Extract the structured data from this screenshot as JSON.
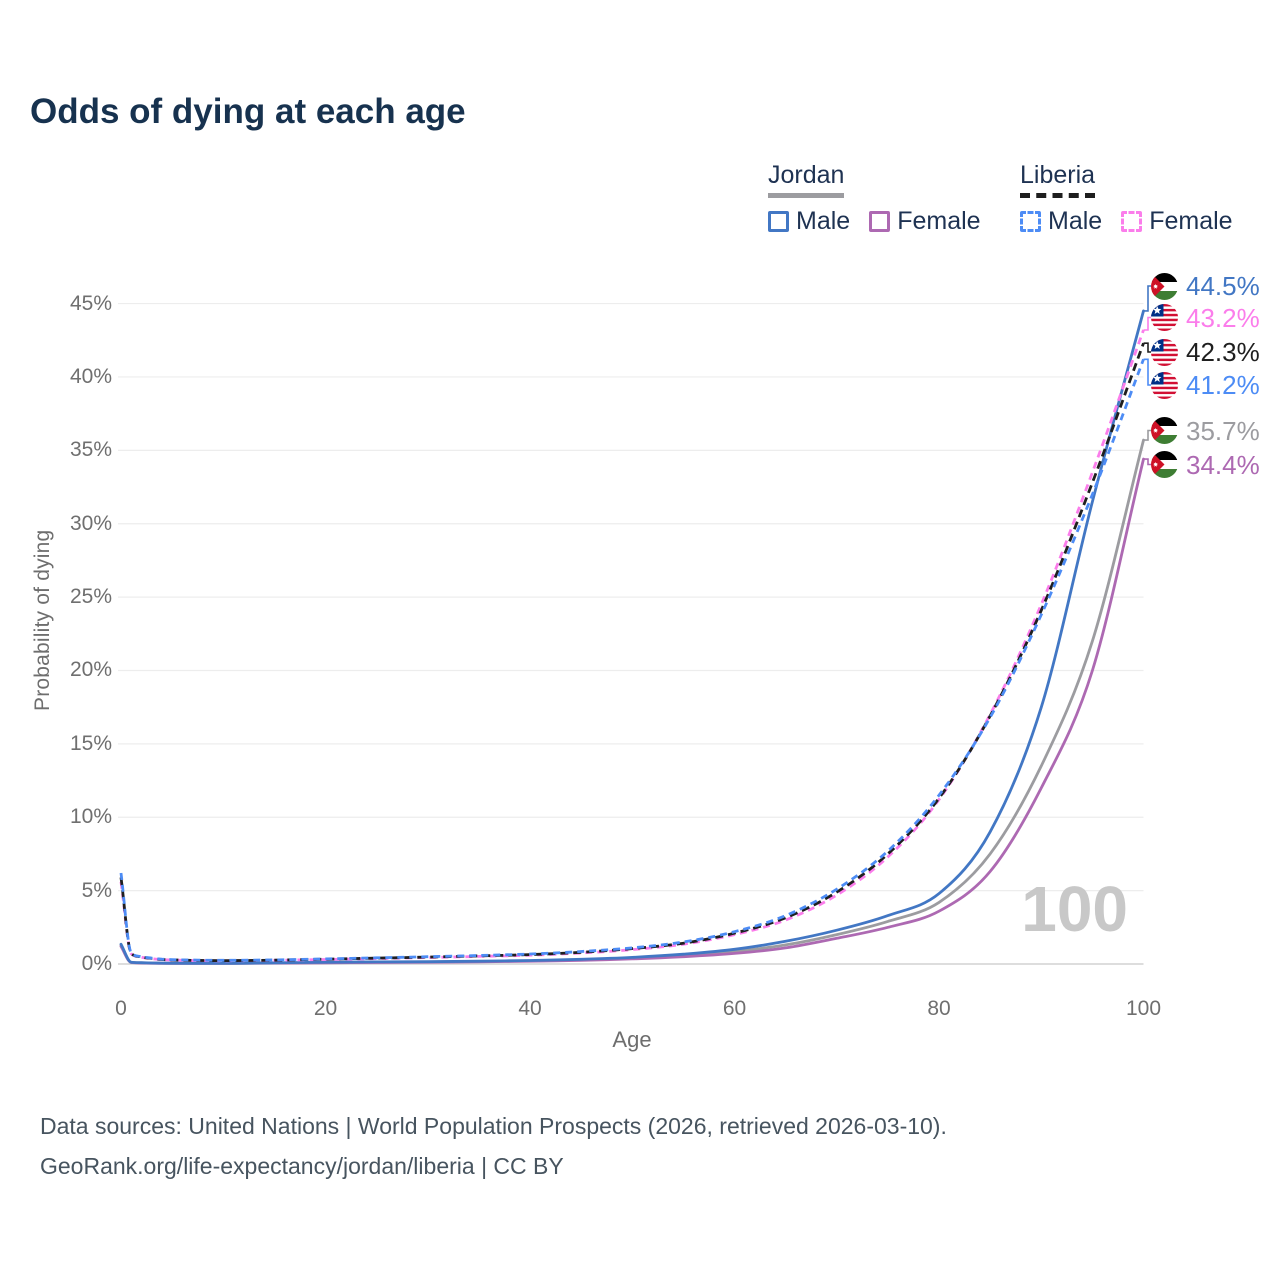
{
  "title": "Odds of dying at each age",
  "legend": {
    "groups": [
      {
        "country": "Jordan",
        "line_style": "solid",
        "underline_color": "#9c9ca0",
        "items": [
          {
            "label": "Male",
            "color": "#4277c4"
          },
          {
            "label": "Female",
            "color": "#ad69b2"
          }
        ]
      },
      {
        "country": "Liberia",
        "line_style": "dashed",
        "underline_color": "#1e1e1e",
        "items": [
          {
            "label": "Male",
            "color": "#4d8cf5"
          },
          {
            "label": "Female",
            "color": "#fb7deb"
          }
        ]
      }
    ]
  },
  "axes": {
    "x_label": "Age",
    "y_label": "Probability of dying",
    "x_ticks": [
      0,
      20,
      40,
      60,
      80,
      100
    ],
    "y_ticks": [
      0,
      5,
      10,
      15,
      20,
      25,
      30,
      35,
      40,
      45
    ],
    "y_tick_suffix": "%"
  },
  "watermark": "100",
  "footer": {
    "line1": "Data sources: United Nations | World Population Prospects (2026, retrieved 2026-03-10).",
    "line2": "GeoRank.org/life-expectancy/jordan/liberia | CC BY"
  },
  "colors": {
    "title": "#17324f",
    "grid": "#ededed",
    "zero_line": "#d2d2d2",
    "tick_text": "#6f6f6f",
    "watermark": "#c8c8c8"
  },
  "chart_data": {
    "type": "line",
    "title": "Odds of dying at each age",
    "xlabel": "Age",
    "ylabel": "Probability of dying",
    "xlim": [
      0,
      100
    ],
    "ylim": [
      0,
      46
    ],
    "grid": "horizontal",
    "legend_position": "top-right",
    "x": [
      0,
      1,
      2,
      3,
      4,
      5,
      10,
      15,
      20,
      25,
      30,
      35,
      40,
      45,
      50,
      55,
      60,
      65,
      70,
      75,
      80,
      85,
      90,
      95,
      100
    ],
    "series": [
      {
        "id": "jordan_male",
        "name": "Jordan Male",
        "country": "Jordan",
        "sex": "Male",
        "style": "solid",
        "color": "#4277c4",
        "end_label": "44.5%",
        "values": [
          1.35,
          0.12,
          0.09,
          0.07,
          0.06,
          0.055,
          0.05,
          0.08,
          0.12,
          0.14,
          0.16,
          0.19,
          0.24,
          0.32,
          0.45,
          0.67,
          1.0,
          1.55,
          2.3,
          3.3,
          4.8,
          9.0,
          17.5,
          31.5,
          44.5
        ]
      },
      {
        "id": "jordan_both",
        "name": "Jordan Both sexes",
        "country": "Jordan",
        "sex": "Both",
        "style": "solid",
        "color": "#9c9ca0",
        "end_label": "35.7%",
        "values": [
          1.28,
          0.11,
          0.08,
          0.065,
          0.055,
          0.05,
          0.045,
          0.07,
          0.1,
          0.12,
          0.14,
          0.17,
          0.21,
          0.28,
          0.4,
          0.57,
          0.85,
          1.3,
          2.0,
          2.9,
          4.2,
          7.5,
          13.5,
          22.0,
          35.7
        ]
      },
      {
        "id": "jordan_female",
        "name": "Jordan Female",
        "country": "Jordan",
        "sex": "Female",
        "style": "solid",
        "color": "#ad69b2",
        "end_label": "34.4%",
        "values": [
          1.2,
          0.1,
          0.07,
          0.055,
          0.05,
          0.045,
          0.04,
          0.06,
          0.08,
          0.1,
          0.12,
          0.15,
          0.19,
          0.25,
          0.35,
          0.5,
          0.72,
          1.1,
          1.75,
          2.5,
          3.6,
          6.3,
          12.0,
          20.0,
          34.4
        ]
      },
      {
        "id": "liberia_male",
        "name": "Liberia Male",
        "country": "Liberia",
        "sex": "Male",
        "style": "dashed",
        "color": "#4d8cf5",
        "end_label": "41.2%",
        "values": [
          6.2,
          0.75,
          0.5,
          0.4,
          0.33,
          0.3,
          0.25,
          0.28,
          0.35,
          0.42,
          0.5,
          0.58,
          0.68,
          0.85,
          1.1,
          1.5,
          2.2,
          3.3,
          5.1,
          7.7,
          11.5,
          16.8,
          23.8,
          32.0,
          41.2
        ]
      },
      {
        "id": "liberia_both",
        "name": "Liberia Both sexes",
        "country": "Liberia",
        "sex": "Both",
        "style": "dashed",
        "color": "#1f1f1f",
        "end_label": "42.3%",
        "values": [
          5.9,
          0.72,
          0.48,
          0.38,
          0.31,
          0.28,
          0.23,
          0.26,
          0.33,
          0.4,
          0.47,
          0.55,
          0.64,
          0.8,
          1.05,
          1.42,
          2.1,
          3.15,
          4.9,
          7.5,
          11.3,
          16.9,
          24.1,
          32.8,
          42.3
        ]
      },
      {
        "id": "liberia_female",
        "name": "Liberia Female",
        "country": "Liberia",
        "sex": "Female",
        "style": "dashed",
        "color": "#fb7deb",
        "end_label": "43.2%",
        "values": [
          5.6,
          0.7,
          0.46,
          0.36,
          0.3,
          0.27,
          0.22,
          0.25,
          0.31,
          0.37,
          0.44,
          0.52,
          0.6,
          0.75,
          0.98,
          1.35,
          2.0,
          3.0,
          4.7,
          7.3,
          11.2,
          17.0,
          24.5,
          33.5,
          43.2
        ]
      }
    ],
    "end_labels_order": [
      "jordan_male",
      "liberia_female",
      "liberia_both",
      "liberia_male",
      "jordan_both",
      "jordan_female"
    ]
  }
}
